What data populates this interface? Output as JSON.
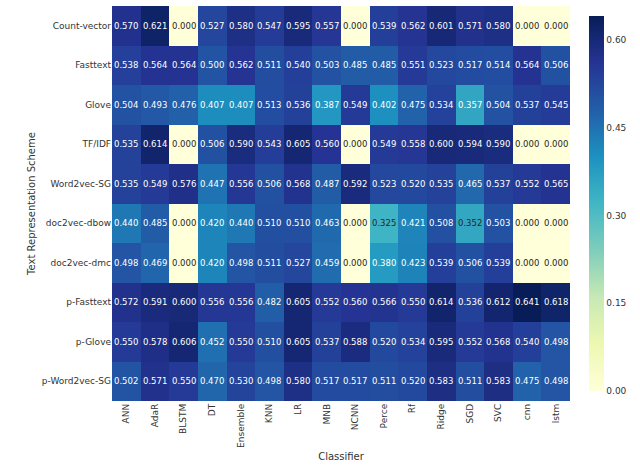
{
  "chart_data": {
    "type": "heatmap",
    "x_label": "Classifier",
    "y_label": "Text Representation Scheme",
    "x_categories": [
      "ANN",
      "AdaR",
      "BLSTM",
      "DT",
      "Ensemble",
      "KNN",
      "LR",
      "MNB",
      "NCNN",
      "Perce",
      "Rf",
      "Ridge",
      "SGD",
      "SVC",
      "cnn",
      "lstm"
    ],
    "y_categories": [
      "Count-vector",
      "Fasttext",
      "Glove",
      "TF/IDF",
      "Word2vec-SG",
      "doc2vec-dbow",
      "doc2vec-dmc",
      "p-Fasttext",
      "p-Glove",
      "p-Word2vec-SG"
    ],
    "values": [
      [
        0.57,
        0.621,
        0.0,
        0.527,
        0.58,
        0.547,
        0.595,
        0.557,
        0.0,
        0.539,
        0.562,
        0.601,
        0.571,
        0.58,
        0.0,
        0.0
      ],
      [
        0.538,
        0.564,
        0.564,
        0.5,
        0.562,
        0.511,
        0.54,
        0.503,
        0.485,
        0.485,
        0.551,
        0.523,
        0.517,
        0.514,
        0.564,
        0.506
      ],
      [
        0.504,
        0.493,
        0.476,
        0.407,
        0.407,
        0.513,
        0.536,
        0.387,
        0.549,
        0.402,
        0.475,
        0.534,
        0.357,
        0.504,
        0.537,
        0.545
      ],
      [
        0.535,
        0.614,
        0.0,
        0.506,
        0.59,
        0.543,
        0.605,
        0.56,
        0.0,
        0.549,
        0.558,
        0.6,
        0.594,
        0.59,
        0.0,
        0.0
      ],
      [
        0.535,
        0.549,
        0.576,
        0.447,
        0.556,
        0.506,
        0.568,
        0.487,
        0.592,
        0.523,
        0.52,
        0.535,
        0.465,
        0.537,
        0.552,
        0.565
      ],
      [
        0.44,
        0.485,
        0.0,
        0.42,
        0.44,
        0.51,
        0.51,
        0.463,
        0.0,
        0.325,
        0.421,
        0.508,
        0.352,
        0.503,
        0.0,
        0.0
      ],
      [
        0.498,
        0.469,
        0.0,
        0.42,
        0.498,
        0.511,
        0.527,
        0.459,
        0.0,
        0.38,
        0.423,
        0.539,
        0.506,
        0.539,
        0.0,
        0.0
      ],
      [
        0.572,
        0.591,
        0.6,
        0.556,
        0.556,
        0.482,
        0.605,
        0.552,
        0.56,
        0.566,
        0.55,
        0.614,
        0.536,
        0.612,
        0.641,
        0.618
      ],
      [
        0.55,
        0.578,
        0.606,
        0.452,
        0.55,
        0.51,
        0.605,
        0.537,
        0.588,
        0.52,
        0.534,
        0.595,
        0.552,
        0.568,
        0.54,
        0.498
      ],
      [
        0.502,
        0.571,
        0.55,
        0.47,
        0.53,
        0.498,
        0.58,
        0.517,
        0.517,
        0.511,
        0.52,
        0.583,
        0.511,
        0.583,
        0.475,
        0.498
      ]
    ],
    "value_labels": [
      [
        "0.570",
        "0.621",
        "0.000",
        "0.527",
        "0.580",
        "0.547",
        "0.595",
        "0.557",
        "0.000",
        "0.539",
        "0.562",
        "0.601",
        "0.571",
        "0.580",
        "0.000",
        "0.000"
      ],
      [
        "0.538",
        "0.564",
        "0.564",
        "0.500",
        "0.562",
        "0.511",
        "0.540",
        "0.503",
        "0.485",
        "0.485",
        "0.551",
        "0.523",
        "0.517",
        "0.514",
        "0.564",
        "0.506"
      ],
      [
        "0.504",
        "0.493",
        "0.476",
        "0.407",
        "0.407",
        "0.513",
        "0.536",
        "0.387",
        "0.549",
        "0.402",
        "0.475",
        "0.534",
        "0.357",
        "0.504",
        "0.537",
        "0.545"
      ],
      [
        "0.535",
        "0.614",
        "0.000",
        "0.506",
        "0.590",
        "0.543",
        "0.605",
        "0.560",
        "0.000",
        "0.549",
        "0.558",
        "0.600",
        "0.594",
        "0.590",
        "0.000",
        "0.000"
      ],
      [
        "0.535",
        "0.549",
        "0.576",
        "0.447",
        "0.556",
        "0.506",
        "0.568",
        "0.487",
        "0.592",
        "0.523",
        "0.520",
        "0.535",
        "0.465",
        "0.537",
        "0.552",
        "0.565"
      ],
      [
        "0.440",
        "0.485",
        "0.000",
        "0.420",
        "0.440",
        "0.510",
        "0.510",
        "0.463",
        "0.000",
        "0.325",
        "0.421",
        "0.508",
        "0.352",
        "0.503",
        "0.000",
        "0.000"
      ],
      [
        "0.498",
        "0.469",
        "0.000",
        "0.420",
        "0.498",
        "0.511",
        "0.527",
        "0.459",
        "0.000",
        "0.380",
        "0.423",
        "0.539",
        "0.506",
        "0.539",
        "0.000",
        "0.000"
      ],
      [
        "0.572",
        "0.591",
        "0.600",
        "0.556",
        "0.556",
        "0.482",
        "0.605",
        "0.552",
        "0.560",
        "0.566",
        "0.550",
        "0.614",
        "0.536",
        "0.612",
        "0.641",
        "0.618"
      ],
      [
        "0.550",
        "0.578",
        "0.606",
        "0.452",
        "0.550",
        "0.510",
        "0.605",
        "0.537",
        "0.588",
        "0.520",
        "0.534",
        "0.595",
        "0.552",
        "0.568",
        "0.540",
        "0.498"
      ],
      [
        "0.502",
        "0.571",
        "0.550",
        "0.470",
        "0.530",
        "0.498",
        "0.580",
        "0.517",
        "0.517",
        "0.511",
        "0.520",
        "0.583",
        "0.511",
        "0.583",
        "0.475",
        "0.498"
      ]
    ],
    "data_labels": true,
    "colorbar_range": [
      0,
      0.641
    ],
    "colorbar_ticks": [
      {
        "value": 0,
        "label": "0.00"
      },
      {
        "value": 0.15,
        "label": "0.15"
      },
      {
        "value": 0.3,
        "label": "0.30"
      },
      {
        "value": 0.45,
        "label": "0.45"
      },
      {
        "value": 0.6,
        "label": "0.60"
      }
    ]
  }
}
